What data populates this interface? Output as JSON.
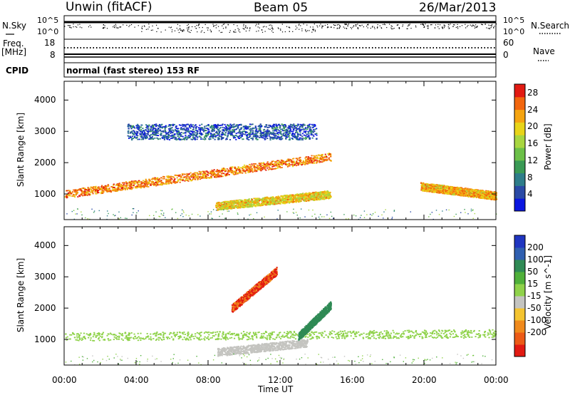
{
  "header": {
    "station": "Unwin (fitACF)",
    "beam": "Beam 05",
    "date": "26/Mar/2013"
  },
  "status_panel": {
    "nsky_label": "N.Sky",
    "nsky_ticks": [
      "10^5",
      "10^0"
    ],
    "nsearch_label": "N.Search",
    "nsearch_ticks": [
      "10^5",
      "10^0"
    ],
    "freq_label": "Freq.",
    "freq_unit": "[MHz]",
    "freq_ticks": [
      "18",
      "8"
    ],
    "nave_label": "Nave",
    "nave_ticks": [
      "60",
      "0"
    ],
    "cpid_label": "CPID",
    "cpid_value": "normal (fast stereo) 153 RF"
  },
  "time_axis": {
    "label": "Time UT",
    "ticks": [
      "00:00",
      "04:00",
      "08:00",
      "12:00",
      "16:00",
      "20:00",
      "00:00"
    ]
  },
  "chart_data": [
    {
      "type": "heatmap",
      "panel": "power",
      "ylabel": "Slant Range [km]",
      "xlabel": "Time UT",
      "xlim_hours": [
        0,
        24
      ],
      "ylim_km": [
        180,
        4600
      ],
      "yticks": [
        1000,
        2000,
        3000,
        4000
      ],
      "colorbar": {
        "label": "Power [dB]",
        "ticks": [
          4,
          8,
          12,
          16,
          20,
          24,
          28
        ],
        "range": [
          0,
          30
        ],
        "colors": [
          "#0a16e0",
          "#2a4aa6",
          "#2e7d8a",
          "#3a9a55",
          "#6cc048",
          "#a8d640",
          "#e8d418",
          "#f5a410",
          "#f2660e",
          "#e21a12"
        ]
      },
      "features": [
        {
          "name": "main echo band",
          "t_start": 0.0,
          "t_end": 14.8,
          "range_start_km": 1000,
          "range_end_km": 2200,
          "power_db": 24
        },
        {
          "name": "main echo band (late)",
          "t_start": 19.8,
          "t_end": 24.0,
          "range_start_km": 1250,
          "range_end_km": 950,
          "power_db": 22
        },
        {
          "name": "near-range band",
          "t_start": 8.4,
          "t_end": 14.8,
          "range_start_km": 620,
          "range_end_km": 1000,
          "power_db": 20
        },
        {
          "name": "weak upper echoes",
          "t_start": 3.5,
          "t_end": 14.0,
          "range_start_km": 3000,
          "range_end_km": 3000,
          "power_db": 5
        }
      ]
    },
    {
      "type": "heatmap",
      "panel": "velocity",
      "ylabel": "Slant Range [km]",
      "xlabel": "Time UT",
      "xlim_hours": [
        0,
        24
      ],
      "ylim_km": [
        180,
        4600
      ],
      "yticks": [
        1000,
        2000,
        3000,
        4000
      ],
      "colorbar": {
        "label": "Velocity [m s^-1]",
        "ticks": [
          200,
          100,
          50,
          15,
          -15,
          -50,
          -100,
          -200
        ],
        "colors": [
          "#1f35c0",
          "#2f5fb0",
          "#2f8a55",
          "#4fb03a",
          "#8fd24a",
          "#c4c4c0",
          "#f4c430",
          "#f08a1c",
          "#ec5a16",
          "#e21a12"
        ]
      },
      "features": [
        {
          "name": "ground scatter",
          "t_start": 0.0,
          "t_end": 24.0,
          "range_start_km": 1100,
          "range_end_km": 1200,
          "velocity_ms": 0
        },
        {
          "name": "negative velocity patch",
          "t_start": 9.3,
          "t_end": 11.8,
          "range_start_km": 2000,
          "range_end_km": 3200,
          "velocity_ms": -210
        },
        {
          "name": "positive velocity patch",
          "t_start": 13.0,
          "t_end": 14.8,
          "range_start_km": 1100,
          "range_end_km": 2100,
          "velocity_ms": 60
        },
        {
          "name": "near-range negative",
          "t_start": 8.5,
          "t_end": 13.5,
          "range_start_km": 600,
          "range_end_km": 900,
          "velocity_ms": -40
        }
      ]
    }
  ]
}
